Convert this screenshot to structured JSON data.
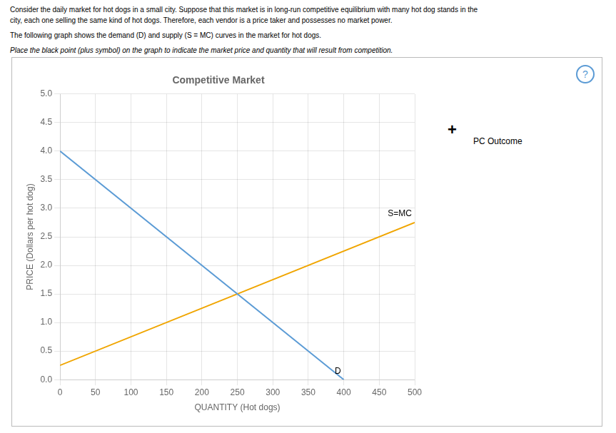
{
  "chart_data": {
    "type": "line",
    "title": "Competitive Market",
    "subtitle": [
      "Consider the daily market for hot dogs in a small city. Suppose that this market is in long-run competitive equilibrium with many hot dog stands in the",
      "city, each one selling the same kind of hot dogs. Therefore, each vendor is a price taker and possesses no market power.",
      "The following graph shows the demand (D) and supply (S = MC) curves in the market for hot dogs.",
      "Place the black point (plus symbol) on the graph to indicate the market price and quantity that will result from competition."
    ],
    "xlabel": "QUANTITY (Hot dogs)",
    "ylabel": "PRICE (Dollars per hot dog)",
    "series": [
      {
        "name": "D",
        "color": "#5b9bd5",
        "x": [
          0,
          400
        ],
        "values": [
          4.0,
          0.0
        ]
      },
      {
        "name": "S=MC",
        "color": "#f0a500",
        "x": [
          0,
          500
        ],
        "values": [
          0.25,
          2.75
        ]
      }
    ],
    "xlim": [
      0,
      500
    ],
    "ylim": [
      0,
      5.0
    ],
    "xticks": [
      0,
      50,
      100,
      150,
      200,
      250,
      300,
      350,
      400,
      450,
      500
    ],
    "yticks": [
      {
        "value": 0,
        "label": "0.0"
      },
      0.5,
      {
        "value": 1.0,
        "label": "1.0"
      },
      1.5,
      {
        "value": 2.0,
        "label": "2.0"
      },
      2.5,
      {
        "value": 3.0,
        "label": "3.0"
      },
      3.5,
      {
        "value": 4.0,
        "label": "4.0"
      },
      4.5,
      {
        "value": 5.0,
        "label": "5.0"
      }
    ],
    "grid": true,
    "annotations": [
      "?",
      "+",
      "PC Outcome"
    ]
  }
}
